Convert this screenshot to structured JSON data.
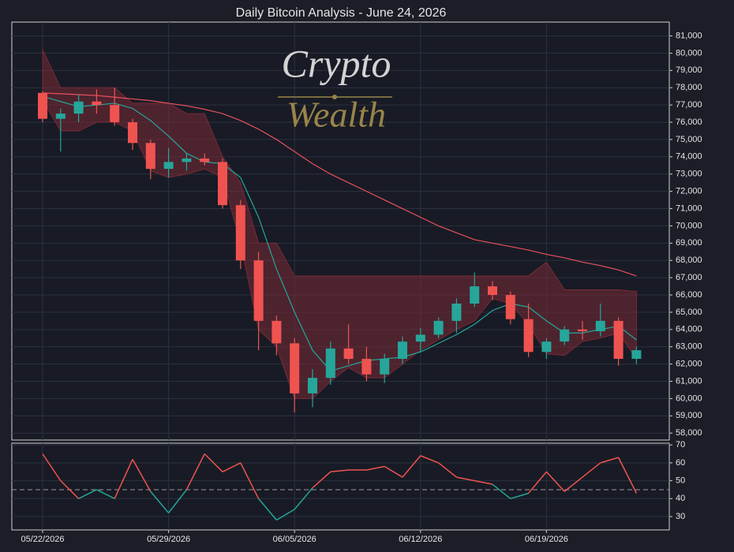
{
  "chart_data": {
    "type": "candlestick",
    "title": "Daily Bitcoin Analysis - June 24, 2026",
    "watermark": [
      "Crypto",
      "Wealth"
    ],
    "x": [
      "05/22/2026",
      "05/23/2026",
      "05/24/2026",
      "05/25/2026",
      "05/26/2026",
      "05/27/2026",
      "05/28/2026",
      "05/29/2026",
      "05/30/2026",
      "05/31/2026",
      "06/01/2026",
      "06/02/2026",
      "06/03/2026",
      "06/04/2026",
      "06/05/2026",
      "06/06/2026",
      "06/07/2026",
      "06/08/2026",
      "06/09/2026",
      "06/10/2026",
      "06/11/2026",
      "06/12/2026",
      "06/13/2026",
      "06/14/2026",
      "06/15/2026",
      "06/16/2026",
      "06/17/2026",
      "06/18/2026",
      "06/19/2026",
      "06/20/2026",
      "06/21/2026",
      "06/22/2026",
      "06/23/2026",
      "06/24/2026"
    ],
    "xticks": [
      "05/22/2026",
      "05/29/2026",
      "06/05/2026",
      "06/12/2026",
      "06/19/2026"
    ],
    "open": [
      77700,
      76200,
      76500,
      77200,
      77000,
      76000,
      74800,
      73300,
      73700,
      73900,
      73700,
      71200,
      68000,
      64500,
      63200,
      60300,
      61200,
      62900,
      62300,
      61400,
      62300,
      63300,
      63700,
      64500,
      65500,
      66500,
      66000,
      64600,
      62700,
      63300,
      64000,
      63900,
      64500,
      62300
    ],
    "high": [
      77800,
      76800,
      77600,
      77900,
      78000,
      76200,
      75000,
      74500,
      74200,
      74200,
      73900,
      71500,
      68500,
      64800,
      63500,
      61700,
      63300,
      64300,
      63000,
      62600,
      63600,
      64100,
      64700,
      65800,
      67300,
      66800,
      66200,
      65500,
      63500,
      64200,
      64500,
      65500,
      64700,
      63000
    ],
    "low": [
      76000,
      74300,
      76000,
      76500,
      75800,
      74400,
      72700,
      72800,
      73200,
      73500,
      71000,
      67500,
      62800,
      62500,
      59200,
      59500,
      60800,
      62000,
      61000,
      60900,
      62000,
      62700,
      63500,
      63800,
      65300,
      65700,
      64300,
      62400,
      62300,
      63100,
      63400,
      63600,
      61900,
      62000
    ],
    "close": [
      76200,
      76500,
      77200,
      77000,
      76000,
      74800,
      73300,
      73700,
      73900,
      73700,
      71200,
      68000,
      64500,
      63200,
      60300,
      61200,
      62900,
      62300,
      61400,
      62300,
      63300,
      63700,
      64500,
      65500,
      66500,
      66000,
      64600,
      62700,
      63300,
      64000,
      63900,
      64500,
      62300,
      62800
    ],
    "up_color": "#26a69a",
    "down_color": "#ef5350",
    "band": {
      "color": "#7a2a36",
      "upper": [
        80200,
        78000,
        78000,
        78000,
        78000,
        77100,
        77100,
        77100,
        76500,
        76500,
        74000,
        72500,
        69000,
        69000,
        67100,
        67100,
        67100,
        67100,
        67100,
        67100,
        67100,
        67100,
        67100,
        67100,
        67100,
        67100,
        67100,
        67100,
        67900,
        66300,
        66300,
        66300,
        66300,
        66200
      ],
      "lower": [
        77300,
        75500,
        75500,
        76000,
        76000,
        75500,
        73200,
        72800,
        73000,
        73300,
        72800,
        69000,
        64000,
        63000,
        60000,
        60000,
        61000,
        61800,
        61200,
        61200,
        62000,
        62800,
        63400,
        64000,
        64500,
        65800,
        65500,
        64300,
        62600,
        62500,
        63300,
        63500,
        63800,
        62300
      ]
    },
    "lines": [
      {
        "color": "#e8505e",
        "values": [
          77700,
          77650,
          77600,
          77550,
          77450,
          77350,
          77250,
          77100,
          76950,
          76750,
          76500,
          76100,
          75600,
          75000,
          74300,
          73600,
          73000,
          72500,
          72000,
          71500,
          71000,
          70500,
          70000,
          69600,
          69200,
          69000,
          68800,
          68600,
          68350,
          68150,
          67900,
          67700,
          67450,
          67100
        ]
      },
      {
        "color": "#26a69a",
        "values": [
          77500,
          77200,
          76900,
          77000,
          77100,
          76800,
          76100,
          75200,
          74200,
          73700,
          73600,
          72800,
          70500,
          67500,
          65000,
          62800,
          61600,
          61900,
          62200,
          62300,
          62400,
          62700,
          63200,
          63700,
          64300,
          65100,
          65500,
          65300,
          64500,
          63800,
          63800,
          64000,
          64200,
          63400
        ]
      }
    ],
    "ylim": [
      57600,
      81800
    ],
    "yticks": [
      {
        "value": 58000,
        "label": "58,000"
      },
      {
        "value": 59000,
        "label": "59,000"
      },
      {
        "value": 60000,
        "label": "60,000"
      },
      {
        "value": 61000,
        "label": "61,000"
      },
      {
        "value": 62000,
        "label": "62,000"
      },
      {
        "value": 63000,
        "label": "63,000"
      },
      {
        "value": 64000,
        "label": "64,000"
      },
      {
        "value": 65000,
        "label": "65,000"
      },
      {
        "value": 66000,
        "label": "66,000"
      },
      {
        "value": 67000,
        "label": "67,000"
      },
      {
        "value": 68000,
        "label": "68,000"
      },
      {
        "value": 69000,
        "label": "69,000"
      },
      {
        "value": 70000,
        "label": "70,000"
      },
      {
        "value": 71000,
        "label": "71,000"
      },
      {
        "value": 72000,
        "label": "72,000"
      },
      {
        "value": 73000,
        "label": "73,000"
      },
      {
        "value": 74000,
        "label": "74,000"
      },
      {
        "value": 75000,
        "label": "75,000"
      },
      {
        "value": 76000,
        "label": "76,000"
      },
      {
        "value": 77000,
        "label": "77,000"
      },
      {
        "value": 78000,
        "label": "78,000"
      },
      {
        "value": 79000,
        "label": "79,000"
      },
      {
        "value": 80000,
        "label": "80,000"
      },
      {
        "value": 81000,
        "label": "81,000"
      }
    ],
    "grid": true,
    "rsi": {
      "values": [
        65,
        50,
        40,
        45,
        40,
        62,
        44,
        32,
        45,
        65,
        55,
        60,
        40,
        28,
        34,
        46,
        55,
        56,
        56,
        58,
        52,
        64,
        60,
        52,
        50,
        48,
        40,
        43,
        55,
        44,
        52,
        60,
        63,
        43
      ],
      "reference": 45,
      "up_color": "#ef5350",
      "down_color": "#26a69a",
      "ylim": [
        22.5,
        71
      ],
      "yticks": [
        30,
        40,
        50,
        60,
        70
      ]
    }
  }
}
